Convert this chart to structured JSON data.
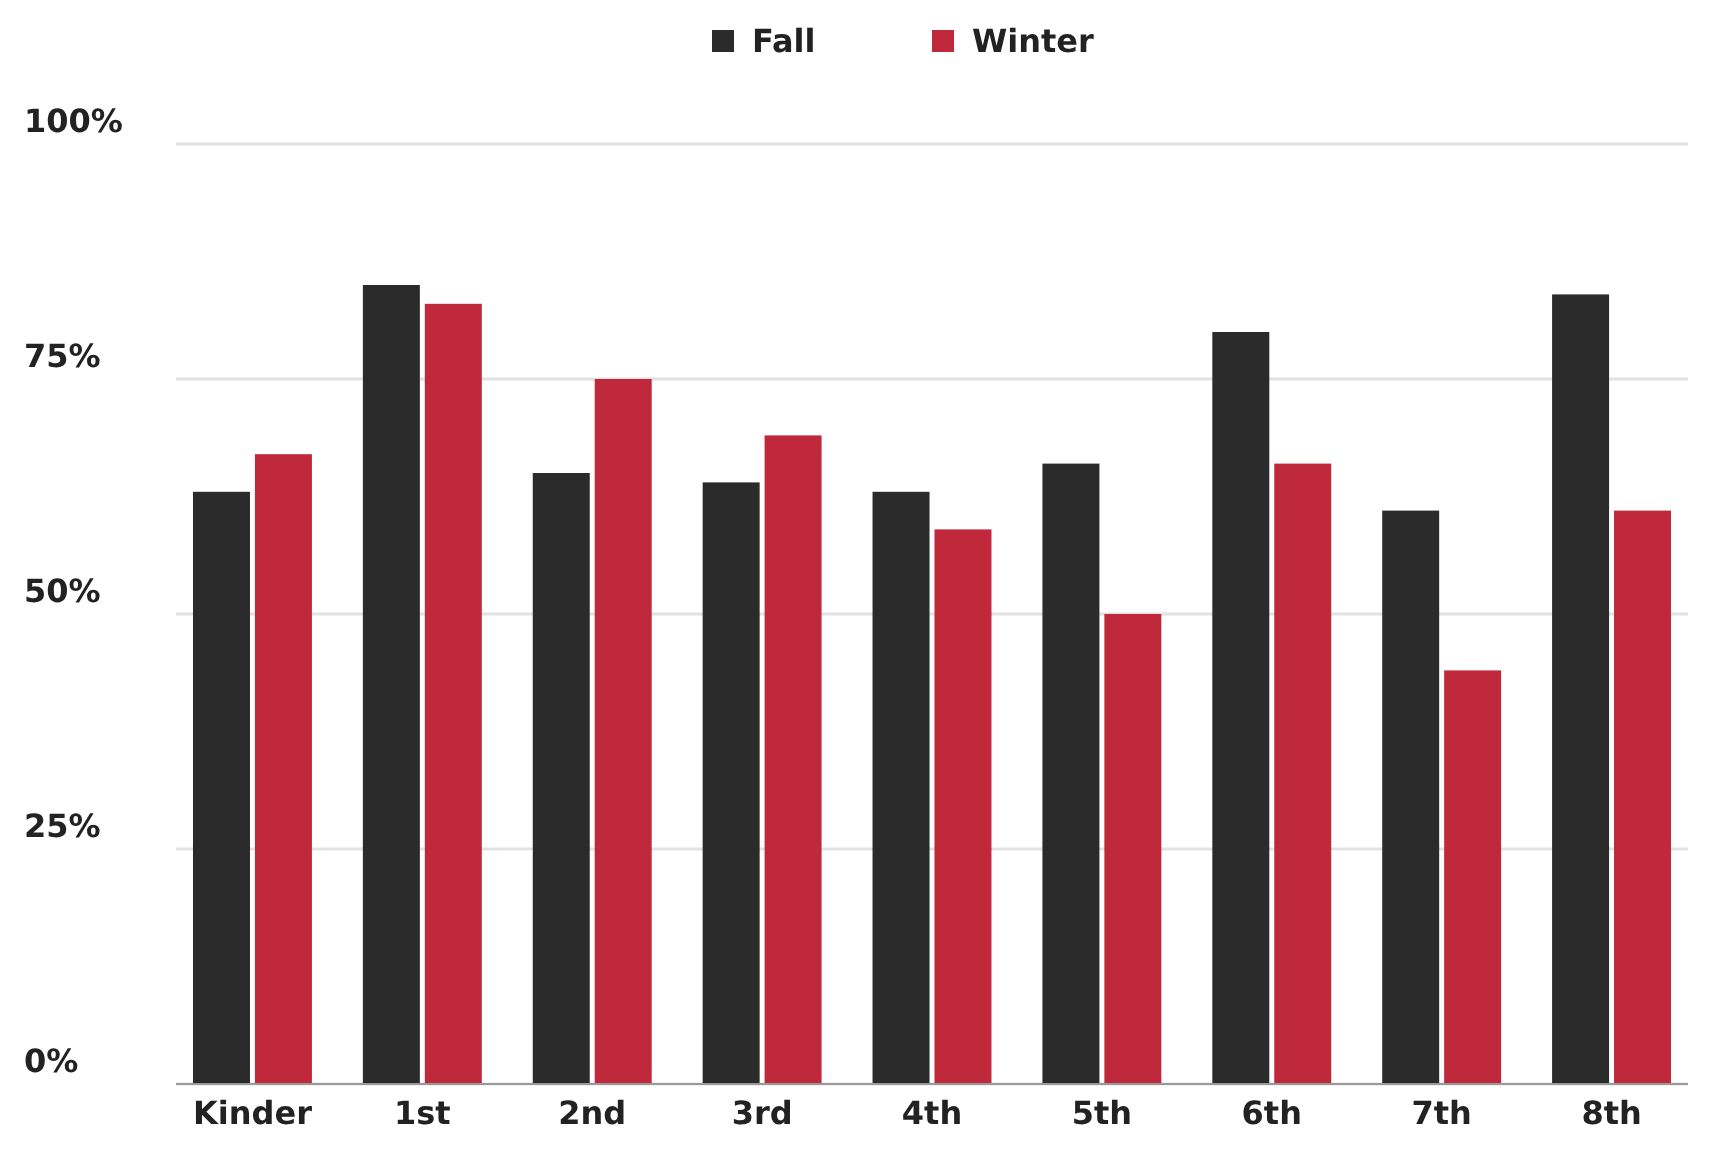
{
  "chart_data": {
    "type": "bar",
    "categories": [
      "Kinder",
      "1st",
      "2nd",
      "3rd",
      "4th",
      "5th",
      "6th",
      "7th",
      "8th"
    ],
    "series": [
      {
        "name": "Fall",
        "color": "#2b2b2b",
        "values": [
          63,
          85,
          65,
          64,
          63,
          66,
          80,
          61,
          84
        ]
      },
      {
        "name": "Winter",
        "color": "#c0293b",
        "values": [
          67,
          83,
          75,
          69,
          59,
          50,
          66,
          44,
          61
        ]
      }
    ],
    "ylim": [
      0,
      100
    ],
    "yticks": [
      {
        "value": 0,
        "label": "0%"
      },
      {
        "value": 25,
        "label": "25%"
      },
      {
        "value": 50,
        "label": "50%"
      },
      {
        "value": 75,
        "label": "75%"
      },
      {
        "value": 100,
        "label": "100%"
      }
    ],
    "grid": "y",
    "legend": "top"
  }
}
